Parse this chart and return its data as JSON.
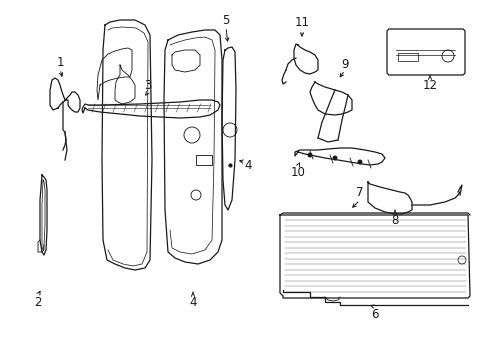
{
  "background_color": "#ffffff",
  "line_color": "#1a1a1a",
  "line_width": 0.9,
  "label_fontsize": 8.5,
  "fig_width": 4.89,
  "fig_height": 3.6,
  "dpi": 100
}
